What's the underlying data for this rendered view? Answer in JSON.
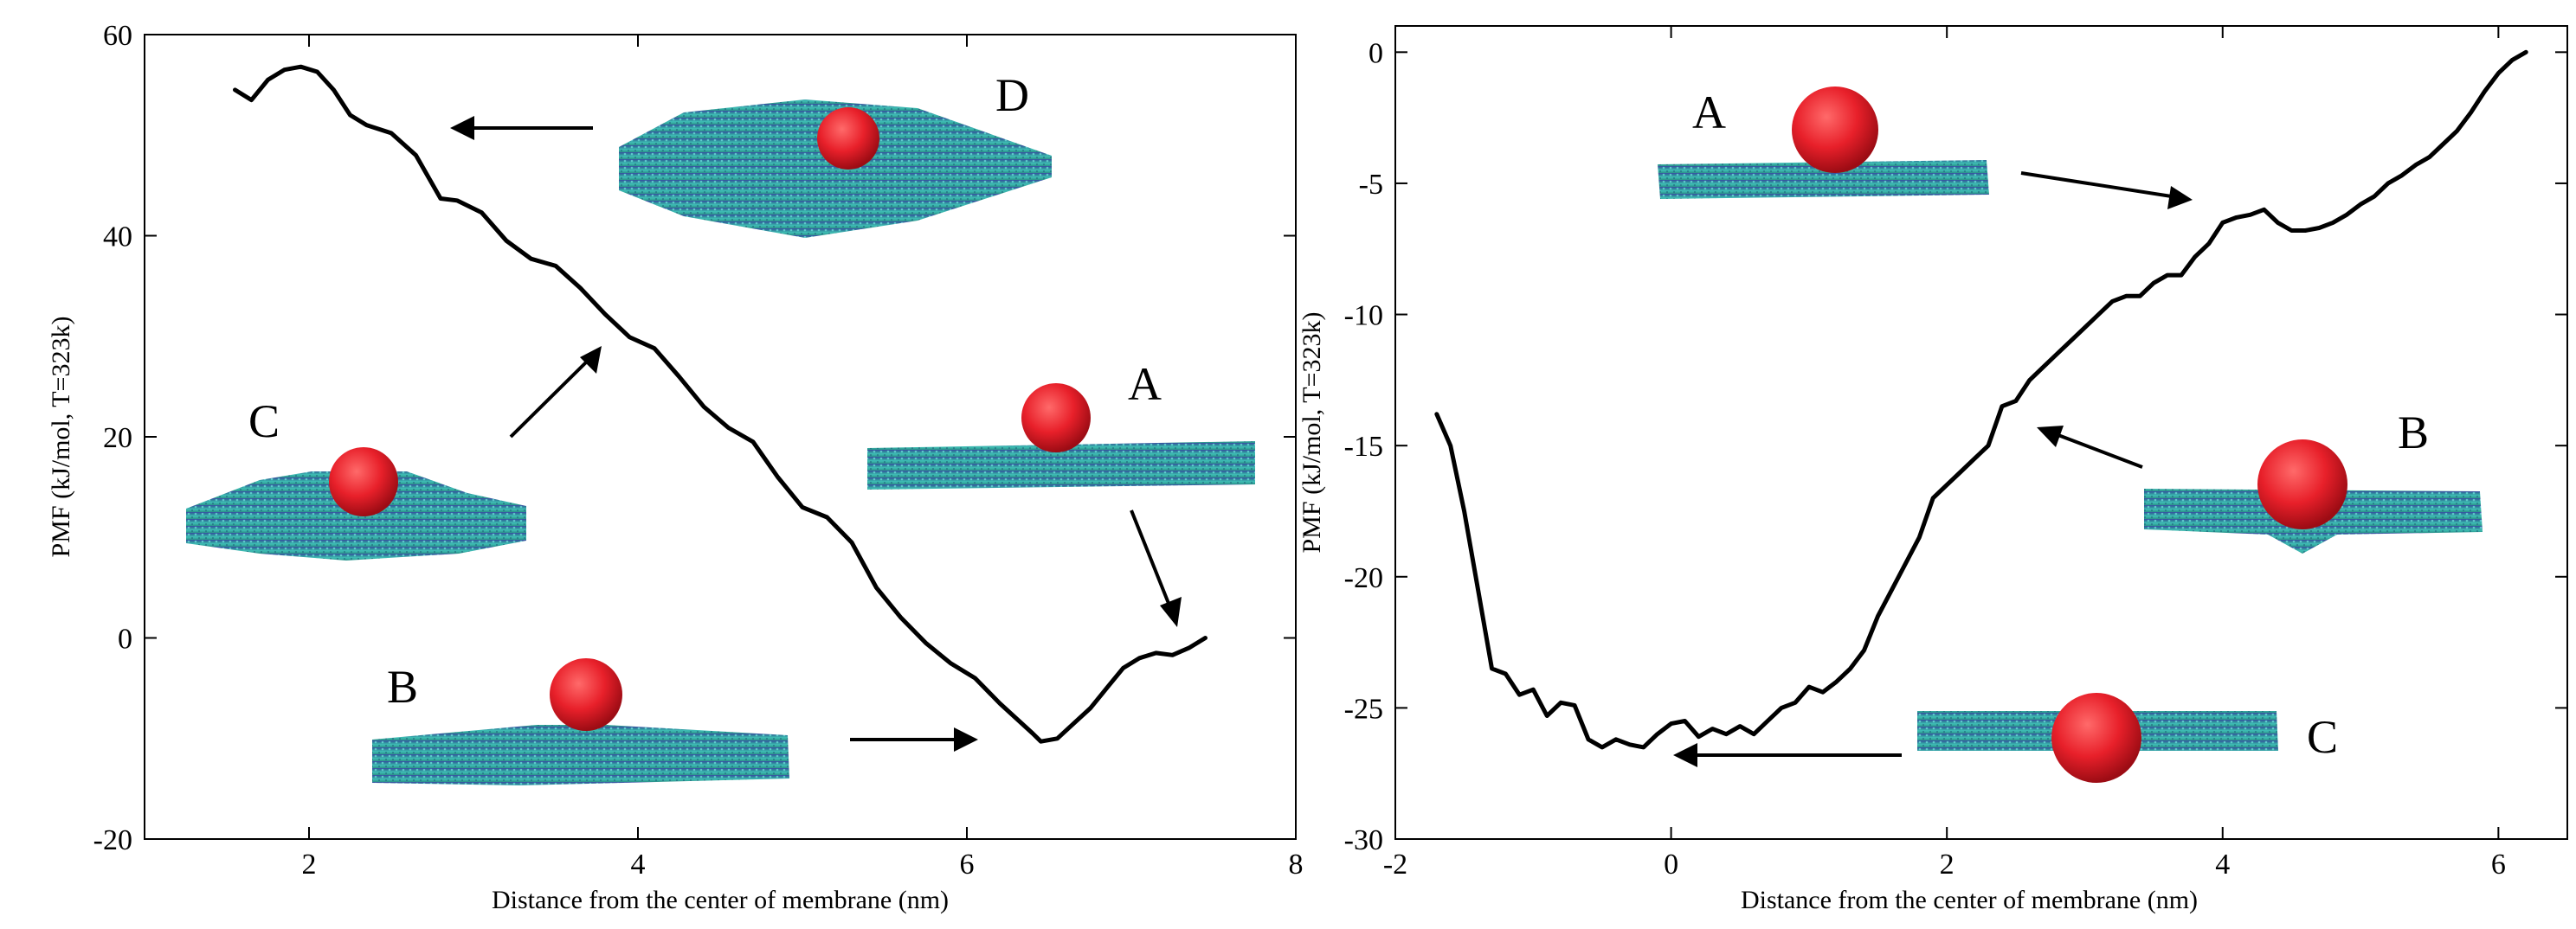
{
  "chart_data": [
    {
      "type": "line",
      "panel": "left",
      "title": "",
      "xlabel": "Distance from the center of membrane (nm)",
      "ylabel": "PMF (kJ/mol, T=323k)",
      "xlim": [
        1,
        8
      ],
      "ylim": [
        -20,
        60
      ],
      "xticks": [
        2,
        4,
        6,
        8
      ],
      "yticks": [
        -20,
        0,
        20,
        40,
        60
      ],
      "grid": false,
      "series": [
        {
          "name": "PMF",
          "x": [
            1.55,
            1.65,
            1.75,
            1.85,
            1.95,
            2.05,
            2.15,
            2.25,
            2.35,
            2.5,
            2.65,
            2.8,
            2.9,
            3.05,
            3.2,
            3.35,
            3.5,
            3.65,
            3.8,
            3.95,
            4.1,
            4.25,
            4.4,
            4.55,
            4.7,
            4.85,
            5.0,
            5.15,
            5.3,
            5.45,
            5.6,
            5.75,
            5.9,
            6.05,
            6.2,
            6.3,
            6.4,
            6.45,
            6.55,
            6.65,
            6.75,
            6.85,
            6.95,
            7.05,
            7.15,
            7.25,
            7.35,
            7.45
          ],
          "values": [
            54.5,
            53.5,
            55.5,
            56.5,
            56.8,
            56.3,
            54.5,
            52.0,
            51.0,
            50.2,
            48.0,
            43.7,
            43.5,
            42.3,
            39.5,
            37.7,
            37.0,
            34.8,
            32.2,
            29.9,
            28.8,
            26.0,
            23.0,
            20.9,
            19.5,
            16.0,
            13.0,
            12.0,
            9.5,
            5.0,
            2.0,
            -0.5,
            -2.5,
            -4.0,
            -6.5,
            -8.0,
            -9.5,
            -10.3,
            -10.0,
            -8.5,
            -7.0,
            -5.0,
            -3.0,
            -2.0,
            -1.5,
            -1.7,
            -1.0,
            0.0
          ]
        }
      ],
      "annotations": [
        {
          "label": "D",
          "snapshot": "membrane strongly curved with particle on top",
          "arrow_target": [
            2.9,
            51.5
          ]
        },
        {
          "label": "C",
          "snapshot": "membrane curved with particle partially wrapped",
          "arrow_target": [
            3.8,
            29.7
          ]
        },
        {
          "label": "A",
          "snapshot": "flat membrane with particle sitting on top",
          "arrow_target": [
            7.35,
            -1.0
          ]
        },
        {
          "label": "B",
          "snapshot": "flat membrane with particle adsorbed",
          "arrow_target": [
            6.1,
            -10.0
          ]
        }
      ]
    },
    {
      "type": "line",
      "panel": "right",
      "title": "",
      "xlabel": "Distance from the center of membrane (nm)",
      "ylabel": "PMF (kJ/mol, T=323k)",
      "xlim": [
        -2,
        6.5
      ],
      "ylim": [
        -30,
        1
      ],
      "xticks": [
        -2,
        0,
        2,
        4,
        6
      ],
      "yticks": [
        -30,
        -25,
        -20,
        -15,
        -10,
        -5,
        0
      ],
      "grid": false,
      "series": [
        {
          "name": "PMF",
          "x": [
            -1.7,
            -1.6,
            -1.5,
            -1.4,
            -1.3,
            -1.2,
            -1.1,
            -1.0,
            -0.9,
            -0.8,
            -0.7,
            -0.6,
            -0.5,
            -0.4,
            -0.3,
            -0.2,
            -0.1,
            0.0,
            0.1,
            0.2,
            0.3,
            0.4,
            0.5,
            0.6,
            0.7,
            0.8,
            0.9,
            1.0,
            1.1,
            1.2,
            1.3,
            1.4,
            1.5,
            1.6,
            1.7,
            1.8,
            1.9,
            2.0,
            2.1,
            2.2,
            2.3,
            2.4,
            2.5,
            2.6,
            2.7,
            2.8,
            2.9,
            3.0,
            3.1,
            3.2,
            3.3,
            3.4,
            3.5,
            3.6,
            3.7,
            3.8,
            3.9,
            4.0,
            4.1,
            4.2,
            4.3,
            4.4,
            4.5,
            4.6,
            4.7,
            4.8,
            4.9,
            5.0,
            5.1,
            5.2,
            5.3,
            5.4,
            5.5,
            5.6,
            5.7,
            5.8,
            5.9,
            6.0,
            6.1,
            6.2
          ],
          "values": [
            -13.8,
            -15.0,
            -17.5,
            -20.5,
            -23.5,
            -23.7,
            -24.5,
            -24.3,
            -25.3,
            -24.8,
            -24.9,
            -26.2,
            -26.5,
            -26.2,
            -26.4,
            -26.5,
            -26.0,
            -25.6,
            -25.5,
            -26.1,
            -25.8,
            -26.0,
            -25.7,
            -26.0,
            -25.5,
            -25.0,
            -24.8,
            -24.2,
            -24.4,
            -24.0,
            -23.5,
            -22.8,
            -21.5,
            -20.5,
            -19.5,
            -18.5,
            -17.0,
            -16.5,
            -16.0,
            -15.5,
            -15.0,
            -13.5,
            -13.3,
            -12.5,
            -12.0,
            -11.5,
            -11.0,
            -10.5,
            -10.0,
            -9.5,
            -9.3,
            -9.3,
            -8.8,
            -8.5,
            -8.5,
            -7.8,
            -7.3,
            -6.5,
            -6.3,
            -6.2,
            -6.0,
            -6.5,
            -6.8,
            -6.8,
            -6.7,
            -6.5,
            -6.2,
            -5.8,
            -5.5,
            -5.0,
            -4.7,
            -4.3,
            -4.0,
            -3.5,
            -3.0,
            -2.3,
            -1.5,
            -0.8,
            -0.3,
            0.0
          ]
        }
      ],
      "annotations": [
        {
          "label": "A",
          "snapshot": "flat membrane with particle on top",
          "arrow_target": [
            4.4,
            -6.0
          ]
        },
        {
          "label": "B",
          "snapshot": "membrane with particle partially embedded",
          "arrow_target": [
            2.8,
            -14.5
          ]
        },
        {
          "label": "C",
          "snapshot": "particle fully embedded in membrane",
          "arrow_target": [
            0.1,
            -26.8
          ]
        }
      ]
    }
  ],
  "colors": {
    "particle": "#e8202a",
    "particle_shade": "#b3121a",
    "membrane_top": "#3a4fa8",
    "membrane_mid": "#3fb8b0",
    "membrane_edge": "#5fe0d8"
  }
}
